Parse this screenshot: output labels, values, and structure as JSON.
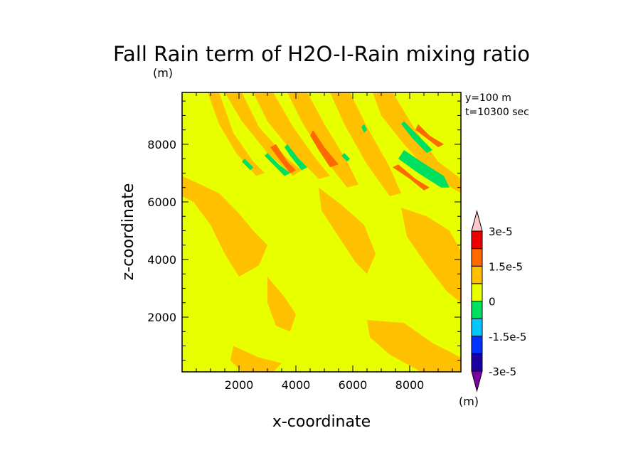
{
  "chart_data": {
    "type": "heatmap",
    "title": "Fall Rain term of H2O-I-Rain mixing ratio",
    "title_unit": "(m)",
    "xlabel": "x-coordinate",
    "ylabel": "z-coordinate",
    "annotations": [
      "y=100 m",
      "t=10300 sec"
    ],
    "xlim": [
      0,
      9800
    ],
    "ylim": [
      100,
      9800
    ],
    "x_ticks": [
      2000,
      4000,
      6000,
      8000
    ],
    "x_tick_labels": [
      "2000",
      "4000",
      "6000",
      "8000"
    ],
    "y_ticks": [
      2000,
      4000,
      6000,
      8000
    ],
    "y_tick_labels": [
      "2000",
      "4000",
      "6000",
      "8000"
    ],
    "background_level_color": "#e8ff00",
    "colorbar": {
      "unit": "(m)",
      "levels": [
        -3e-05,
        -2.25e-05,
        -1.5e-05,
        -7.5e-06,
        0,
        7.5e-06,
        1.5e-05,
        2.25e-05,
        3e-05
      ],
      "colors": [
        "#7a00a8",
        "#1a00a0",
        "#0033ff",
        "#00c8ff",
        "#00e060",
        "#e8ff00",
        "#ffc000",
        "#ff6a00",
        "#ee0000",
        "#f0a0a0",
        "#ffc8c8"
      ],
      "tick_labels": [
        "-3e-5",
        "-1.5e-5",
        "0",
        "1.5e-5",
        "3e-5"
      ]
    },
    "regions": [
      {
        "level": "low_positive",
        "color": "#ffc000",
        "polygon": [
          [
            0,
            6900
          ],
          [
            1300,
            6300
          ],
          [
            2000,
            5600
          ],
          [
            2500,
            5000
          ],
          [
            3000,
            4500
          ],
          [
            2700,
            3800
          ],
          [
            2000,
            3400
          ],
          [
            1500,
            4200
          ],
          [
            1000,
            5200
          ],
          [
            400,
            6000
          ],
          [
            0,
            6200
          ]
        ]
      },
      {
        "level": "low_positive",
        "color": "#ffc000",
        "polygon": [
          [
            900,
            9800
          ],
          [
            1300,
            9800
          ],
          [
            1800,
            8400
          ],
          [
            2500,
            7400
          ],
          [
            2900,
            7000
          ],
          [
            2600,
            6900
          ],
          [
            1900,
            7700
          ],
          [
            1300,
            8700
          ]
        ]
      },
      {
        "level": "low_positive",
        "color": "#ffc000",
        "polygon": [
          [
            1500,
            9800
          ],
          [
            2100,
            9800
          ],
          [
            2700,
            8600
          ],
          [
            3700,
            7500
          ],
          [
            4200,
            7100
          ],
          [
            3900,
            6900
          ],
          [
            3000,
            7700
          ],
          [
            2100,
            8800
          ]
        ]
      },
      {
        "level": "low_positive",
        "color": "#ffc000",
        "polygon": [
          [
            2500,
            9800
          ],
          [
            3200,
            9800
          ],
          [
            3900,
            8600
          ],
          [
            4700,
            7500
          ],
          [
            5200,
            6900
          ],
          [
            4800,
            6800
          ],
          [
            3900,
            7700
          ],
          [
            3000,
            8800
          ]
        ]
      },
      {
        "level": "low_positive",
        "color": "#ffc000",
        "polygon": [
          [
            3700,
            9800
          ],
          [
            4400,
            9800
          ],
          [
            5000,
            8700
          ],
          [
            5800,
            7400
          ],
          [
            6200,
            6600
          ],
          [
            5800,
            6500
          ],
          [
            5000,
            7500
          ],
          [
            4200,
            8800
          ]
        ]
      },
      {
        "level": "low_positive",
        "color": "#ffc000",
        "polygon": [
          [
            5200,
            9800
          ],
          [
            5900,
            9800
          ],
          [
            6500,
            8600
          ],
          [
            7300,
            7200
          ],
          [
            7700,
            6300
          ],
          [
            7300,
            6200
          ],
          [
            6500,
            7300
          ],
          [
            5700,
            8700
          ]
        ]
      },
      {
        "level": "low_positive",
        "color": "#ffc000",
        "polygon": [
          [
            6700,
            9800
          ],
          [
            7400,
            9800
          ],
          [
            8200,
            8500
          ],
          [
            9000,
            7400
          ],
          [
            9800,
            6800
          ],
          [
            9800,
            6300
          ],
          [
            8800,
            6900
          ],
          [
            7800,
            8000
          ],
          [
            7000,
            9000
          ]
        ]
      },
      {
        "level": "low_positive",
        "color": "#ffc000",
        "polygon": [
          [
            4800,
            6500
          ],
          [
            5600,
            5900
          ],
          [
            6400,
            5200
          ],
          [
            6800,
            4200
          ],
          [
            6500,
            3500
          ],
          [
            6100,
            3900
          ],
          [
            5500,
            4800
          ],
          [
            4900,
            5700
          ]
        ]
      },
      {
        "level": "low_positive",
        "color": "#ffc000",
        "polygon": [
          [
            7700,
            5800
          ],
          [
            8600,
            5500
          ],
          [
            9400,
            5000
          ],
          [
            9800,
            4300
          ],
          [
            9800,
            2500
          ],
          [
            9300,
            2900
          ],
          [
            8600,
            3800
          ],
          [
            7900,
            4800
          ]
        ]
      },
      {
        "level": "low_positive",
        "color": "#ffc000",
        "polygon": [
          [
            3000,
            3400
          ],
          [
            3600,
            2700
          ],
          [
            4000,
            2100
          ],
          [
            3800,
            1500
          ],
          [
            3300,
            1700
          ],
          [
            3000,
            2500
          ]
        ]
      },
      {
        "level": "low_positive",
        "color": "#ffc000",
        "polygon": [
          [
            6500,
            1900
          ],
          [
            7800,
            1800
          ],
          [
            8800,
            1100
          ],
          [
            9800,
            600
          ],
          [
            9800,
            100
          ],
          [
            8400,
            100
          ],
          [
            7300,
            700
          ],
          [
            6600,
            1300
          ]
        ]
      },
      {
        "level": "low_positive",
        "color": "#ffc000",
        "polygon": [
          [
            1800,
            1000
          ],
          [
            2700,
            600
          ],
          [
            3500,
            400
          ],
          [
            3200,
            100
          ],
          [
            2100,
            100
          ],
          [
            1700,
            500
          ]
        ]
      },
      {
        "level": "mid_positive",
        "color": "#ff6a00",
        "polygon": [
          [
            3300,
            8000
          ],
          [
            3700,
            7400
          ],
          [
            4000,
            7100
          ],
          [
            3800,
            7000
          ],
          [
            3400,
            7500
          ],
          [
            3100,
            7900
          ]
        ]
      },
      {
        "level": "mid_positive",
        "color": "#ff6a00",
        "polygon": [
          [
            4600,
            8500
          ],
          [
            5000,
            7900
          ],
          [
            5500,
            7300
          ],
          [
            5200,
            7200
          ],
          [
            4800,
            7800
          ],
          [
            4500,
            8300
          ]
        ]
      },
      {
        "level": "mid_positive",
        "color": "#ff6a00",
        "polygon": [
          [
            8300,
            8700
          ],
          [
            8700,
            8300
          ],
          [
            9200,
            8000
          ],
          [
            9000,
            7900
          ],
          [
            8600,
            8200
          ],
          [
            8200,
            8500
          ]
        ]
      },
      {
        "level": "mid_positive",
        "color": "#ff6a00",
        "polygon": [
          [
            7600,
            7300
          ],
          [
            8200,
            6800
          ],
          [
            8700,
            6500
          ],
          [
            8500,
            6400
          ],
          [
            8000,
            6800
          ],
          [
            7400,
            7200
          ]
        ]
      },
      {
        "level": "low_negative",
        "color": "#00e060",
        "polygon": [
          [
            3000,
            7700
          ],
          [
            3400,
            7300
          ],
          [
            3800,
            7000
          ],
          [
            3600,
            6900
          ],
          [
            3200,
            7300
          ],
          [
            2900,
            7600
          ]
        ]
      },
      {
        "level": "low_negative",
        "color": "#00e060",
        "polygon": [
          [
            3700,
            8000
          ],
          [
            4100,
            7500
          ],
          [
            4400,
            7200
          ],
          [
            4200,
            7100
          ],
          [
            3800,
            7600
          ],
          [
            3600,
            7900
          ]
        ]
      },
      {
        "level": "low_negative",
        "color": "#00e060",
        "polygon": [
          [
            2200,
            7500
          ],
          [
            2500,
            7200
          ],
          [
            2400,
            7100
          ],
          [
            2100,
            7400
          ]
        ]
      },
      {
        "level": "low_negative",
        "color": "#00e060",
        "polygon": [
          [
            7800,
            7800
          ],
          [
            8400,
            7400
          ],
          [
            9200,
            6900
          ],
          [
            9400,
            6500
          ],
          [
            9100,
            6500
          ],
          [
            8300,
            7000
          ],
          [
            7600,
            7500
          ]
        ]
      },
      {
        "level": "low_negative",
        "color": "#00e060",
        "polygon": [
          [
            7800,
            8800
          ],
          [
            8300,
            8300
          ],
          [
            8800,
            7800
          ],
          [
            8600,
            7700
          ],
          [
            8100,
            8200
          ],
          [
            7700,
            8700
          ]
        ]
      },
      {
        "level": "low_negative",
        "color": "#00e060",
        "polygon": [
          [
            5700,
            7700
          ],
          [
            5900,
            7500
          ],
          [
            5800,
            7400
          ],
          [
            5600,
            7600
          ]
        ]
      },
      {
        "level": "low_negative",
        "color": "#00e060",
        "polygon": [
          [
            6400,
            8700
          ],
          [
            6500,
            8500
          ],
          [
            6400,
            8400
          ],
          [
            6300,
            8600
          ]
        ]
      }
    ]
  }
}
